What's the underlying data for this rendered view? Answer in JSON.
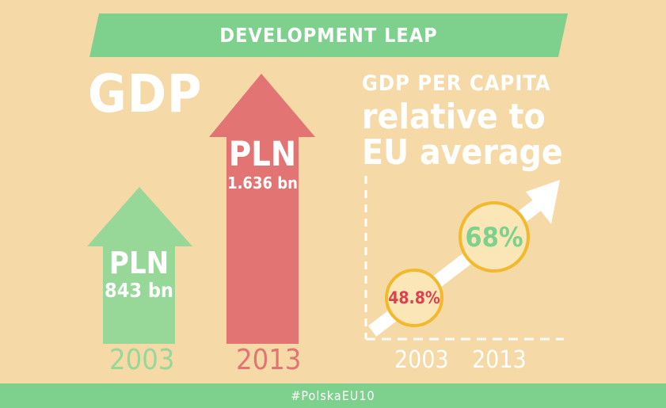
{
  "banner": {
    "title": "DEVELOPMENT LEAP"
  },
  "left": {
    "title": "GDP",
    "bars": [
      {
        "currency": "PLN",
        "value": "843 bn",
        "year": "2003"
      },
      {
        "currency": "PLN",
        "value": "1.636 bn",
        "year": "2013"
      }
    ]
  },
  "right": {
    "title_line1": "GDP PER CAPITA",
    "title_line2": "relative to",
    "title_line3": "EU average",
    "points": [
      {
        "label": "48.8%",
        "year": "2003"
      },
      {
        "label": "68%",
        "year": "2013"
      }
    ]
  },
  "footer": {
    "hashtag": "#PolskaEU10"
  },
  "colors": {
    "background": "#f5d9a6",
    "green": "#7ed18d",
    "red": "#e27474",
    "yellow": "#f2b92e",
    "white": "#ffffff",
    "circle_fill": "#fbe6b7",
    "pct_red": "#e0404e",
    "pct_green": "#7ed18d"
  }
}
